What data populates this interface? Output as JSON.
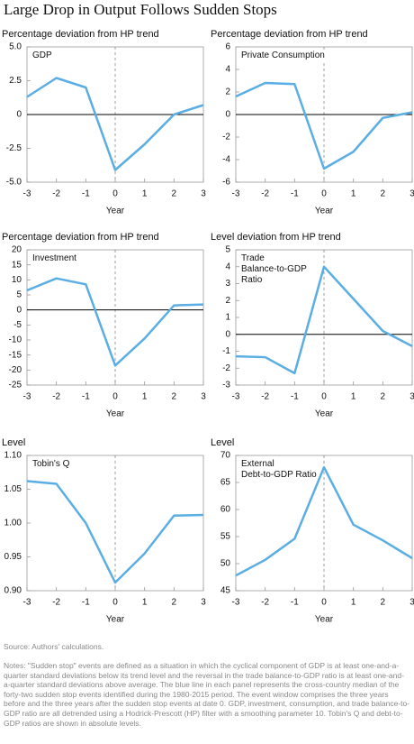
{
  "title": "Large Drop in Output Follows Sudden Stops",
  "source": "Source: Authors' calculations.",
  "notes": "Notes: \"Sudden stop\" events are defined as a situation in which the cyclical component of GDP is at least one-and-a-quarter standard deviations below its trend level and the reversal in the trade balance-to-GDP ratio is at least one-and-a-quarter standard deviations above average. The blue line in each panel represents the cross-country median of the forty-two sudden stop events identified during the 1980-2015 period. The event window comprises the three years before and the three years after the sudden stop events at date 0. GDP, investment, consumption, and trade balance-to-GDP ratio are all detrended using a Hodrick-Prescott (HP) filter with a smoothing parameter 10. Tobin's Q and debt-to-GDP ratios are shown in absolute levels.",
  "chart_data": [
    {
      "type": "line",
      "ylabel": "Percentage deviation from HP trend",
      "title": "GDP",
      "xlabel": "Year",
      "x": [
        -3,
        -2,
        -1,
        0,
        1,
        2,
        3
      ],
      "values": [
        1.3,
        2.7,
        2.0,
        -4.1,
        -2.2,
        0,
        0.7
      ],
      "color": "#5aaee3",
      "xlim": [
        -3,
        3
      ],
      "xticks": [
        -3,
        -2,
        -1,
        0,
        1,
        2,
        3
      ],
      "ylim": [
        -5,
        5
      ],
      "yticks": [
        {
          "value": -5,
          "label": "-5.0"
        },
        -2.5,
        0,
        2.5,
        {
          "value": 5,
          "label": "5.0"
        }
      ]
    },
    {
      "type": "line",
      "ylabel": "Percentage deviation from HP trend",
      "title": "Private Consumption",
      "xlabel": "Year",
      "x": [
        -3,
        -2,
        -1,
        0,
        1,
        2,
        3
      ],
      "values": [
        1.6,
        2.8,
        2.7,
        -4.8,
        -3.3,
        -0.3,
        0.2
      ],
      "color": "#5aaee3",
      "xlim": [
        -3,
        3
      ],
      "xticks": [
        -3,
        -2,
        -1,
        0,
        1,
        2,
        3
      ],
      "ylim": [
        -6,
        6
      ],
      "yticks": [
        -6,
        -4,
        -2,
        0,
        2,
        4,
        6
      ]
    },
    {
      "type": "line",
      "ylabel": "Percentage deviation from HP trend",
      "title": "Investment",
      "xlabel": "Year",
      "x": [
        -3,
        -2,
        -1,
        0,
        1,
        2,
        3
      ],
      "values": [
        6.5,
        10.5,
        8.5,
        -18.5,
        -9.5,
        1.5,
        1.8
      ],
      "color": "#5aaee3",
      "xlim": [
        -3,
        3
      ],
      "xticks": [
        -3,
        -2,
        -1,
        0,
        1,
        2,
        3
      ],
      "ylim": [
        -25,
        20
      ],
      "yticks": [
        -25,
        -20,
        -15,
        -10,
        -5,
        0,
        5,
        10,
        15,
        20
      ]
    },
    {
      "type": "line",
      "ylabel": "Level deviation from HP trend",
      "title": "Trade\nBalance-to-GDP\nRatio",
      "xlabel": "Year",
      "x": [
        -3,
        -2,
        -1,
        0,
        1,
        2,
        3
      ],
      "values": [
        -1.3,
        -1.35,
        -2.3,
        4.0,
        2.1,
        0.2,
        -0.7
      ],
      "color": "#5aaee3",
      "xlim": [
        -3,
        3
      ],
      "xticks": [
        -3,
        -2,
        -1,
        0,
        1,
        2,
        3
      ],
      "ylim": [
        -3,
        5
      ],
      "yticks": [
        -3,
        -2,
        -1,
        0,
        1,
        2,
        3,
        4,
        5
      ]
    },
    {
      "type": "line",
      "ylabel": "Level",
      "title": "Tobin's Q",
      "xlabel": "Year",
      "x": [
        -3,
        -2,
        -1,
        0,
        1,
        2,
        3
      ],
      "values": [
        1.062,
        1.058,
        1.0,
        0.912,
        0.955,
        1.011,
        1.012
      ],
      "color": "#5aaee3",
      "xlim": [
        -3,
        3
      ],
      "xticks": [
        -3,
        -2,
        -1,
        0,
        1,
        2,
        3
      ],
      "ylim": [
        0.9,
        1.1
      ],
      "yticks": [
        {
          "value": 0.9,
          "label": "0.90"
        },
        {
          "value": 0.95,
          "label": "0.95"
        },
        {
          "value": 1,
          "label": "1.00"
        },
        {
          "value": 1.05,
          "label": "1.05"
        },
        {
          "value": 1.1,
          "label": "1.10"
        }
      ]
    },
    {
      "type": "line",
      "ylabel": "Level",
      "title": "External\nDebt-to-GDP Ratio",
      "xlabel": "Year",
      "x": [
        -3,
        -2,
        -1,
        0,
        1,
        2,
        3
      ],
      "values": [
        47.8,
        50.7,
        54.6,
        67.8,
        57.2,
        54.3,
        51.0
      ],
      "color": "#5aaee3",
      "xlim": [
        -3,
        3
      ],
      "xticks": [
        -3,
        -2,
        -1,
        0,
        1,
        2,
        3
      ],
      "ylim": [
        45,
        70
      ],
      "yticks": [
        45,
        50,
        55,
        60,
        65,
        70
      ]
    }
  ]
}
